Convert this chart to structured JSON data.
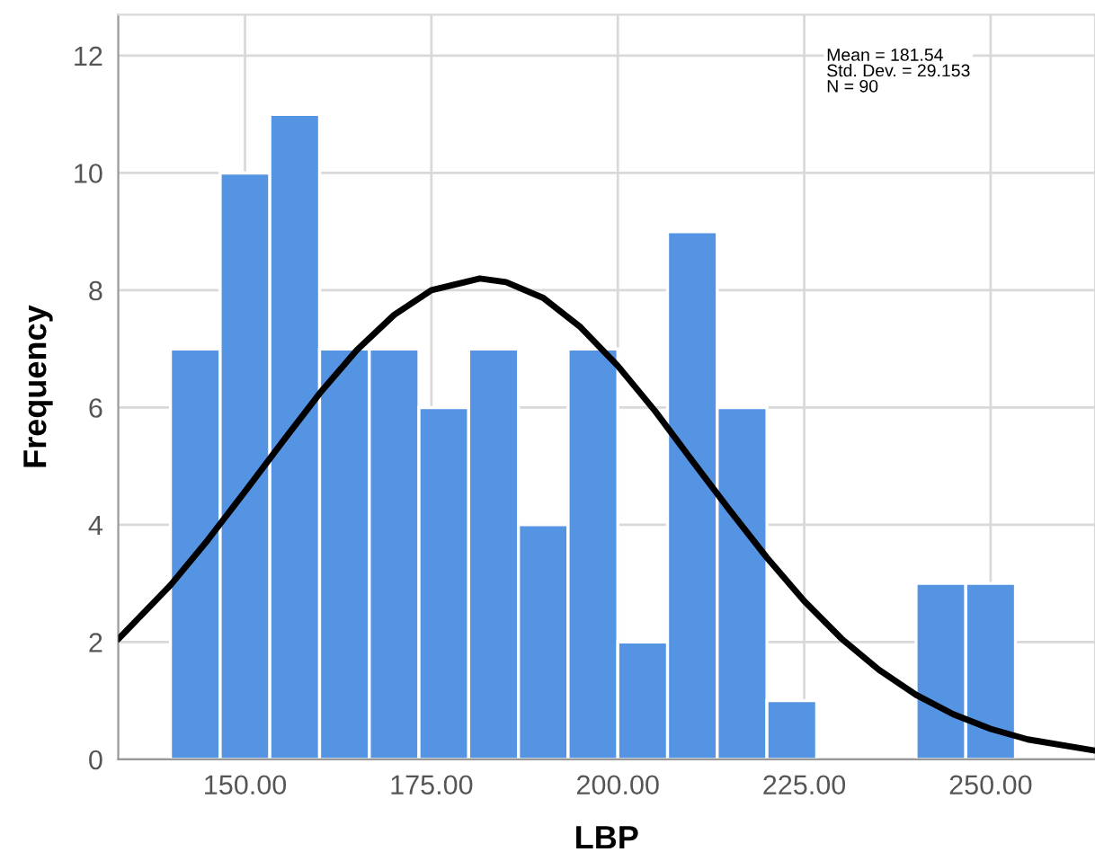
{
  "chart_data": {
    "type": "histogram",
    "xlabel": "LBP",
    "ylabel": "Frequency",
    "bins": [
      140,
      146.67,
      153.33,
      160,
      166.67,
      173.33,
      180,
      186.67,
      193.33,
      200,
      206.67,
      213.33,
      220,
      226.67,
      233.33,
      240,
      246.67,
      253.33
    ],
    "values": [
      7,
      10,
      11,
      7,
      7,
      6,
      7,
      4,
      7,
      2,
      9,
      6,
      1,
      0,
      0,
      3,
      3
    ],
    "color": "#5593e3",
    "series": [
      {
        "type": "line",
        "color": "#000000",
        "x": [
          133,
          140,
          145,
          150,
          155,
          160,
          165,
          170,
          175,
          181.5,
          185,
          190,
          195,
          200,
          205,
          210,
          215,
          220,
          225,
          230,
          235,
          240,
          245,
          250,
          255,
          264
        ],
        "values": [
          2.05,
          2.97,
          3.74,
          4.57,
          5.41,
          6.24,
          6.98,
          7.58,
          8.0,
          8.2,
          8.14,
          7.87,
          7.37,
          6.71,
          5.94,
          5.09,
          4.25,
          3.44,
          2.7,
          2.06,
          1.53,
          1.1,
          0.77,
          0.52,
          0.34,
          0.15
        ]
      }
    ],
    "xlim": [
      133,
      264
    ],
    "ylim": [
      0,
      12.7
    ],
    "xticks": [
      {
        "value": 150,
        "label": "150.00"
      },
      {
        "value": 175,
        "label": "175.00"
      },
      {
        "value": 200,
        "label": "200.00"
      },
      {
        "value": 225,
        "label": "225.00"
      },
      {
        "value": 250,
        "label": "250.00"
      }
    ],
    "yticks": [
      0,
      2,
      4,
      6,
      8,
      10,
      12
    ],
    "grid": true,
    "annotations": [
      "Mean = 181.54\nStd. Dev. = 29.153\nN = 90"
    ]
  }
}
